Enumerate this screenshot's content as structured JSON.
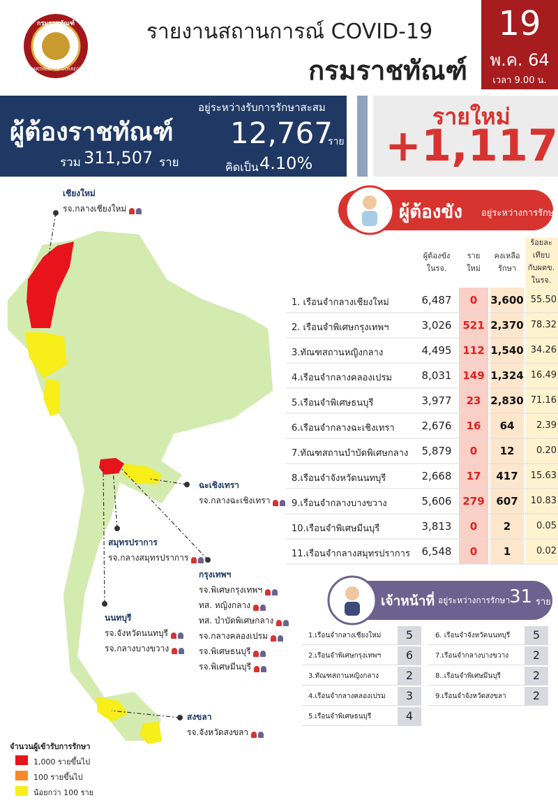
{
  "header": {
    "logo_text": "กรมราชทัณฑ์",
    "logo_subtext": "DEPARTMENT OF CORRECTIONS",
    "title": "รายงานสถานการณ์ COVID-19",
    "subtitle": "กรมราชทัณฑ์",
    "day": "19",
    "month": "พ.ค. 64",
    "time": "เวลา 9.00 น."
  },
  "summary": {
    "label": "ผู้ต้องราชทัณฑ์",
    "total_prefix": "รวม",
    "total": "311,507",
    "total_unit": "ราย",
    "treating_label": "อยู่ระหว่างรับการรักษาสะสม",
    "treating": "12,767",
    "treating_unit": "ราย",
    "percent_prefix": "คิดเป็น",
    "percent": "4.10%"
  },
  "new_cases": {
    "label": "รายใหม่",
    "value": "+1,117"
  },
  "inmates": {
    "title": "ผู้ต้องขัง",
    "subtitle": "อยู่ระหว่างการรักษา",
    "headers": [
      [
        "ผู้ต้องขัง",
        "ในรจ."
      ],
      [
        "ราย",
        "ใหม่"
      ],
      [
        "คงเหลือ",
        "รักษา"
      ],
      [
        "ร้อยละ",
        "เทียบ",
        "กับผตข.",
        "ในรจ."
      ]
    ],
    "rows": [
      [
        "1. เรือนจำกลางเชียงใหม่",
        "6,487",
        "0",
        "3,600",
        "55.50"
      ],
      [
        "2. เรือนจำพิเศษกรุงเทพฯ",
        "3,026",
        "521",
        "2,370",
        "78.32"
      ],
      [
        "3.ทัณฑสถานหญิงกลาง",
        "4,495",
        "112",
        "1,540",
        "34.26"
      ],
      [
        "4.เรือนจำกลางคลองเปรม",
        "8,031",
        "149",
        "1,324",
        "16.49"
      ],
      [
        "5.เรือนจำพิเศษธนบุรี",
        "3,977",
        "23",
        "2,830",
        "71.16"
      ],
      [
        "6.เรือนจำกลางฉะเชิงเทรา",
        "2,676",
        "16",
        "64",
        "2.39"
      ],
      [
        "7.ทัณฑสถานบำบัดพิเศษกลาง",
        "5,879",
        "0",
        "12",
        "0.20"
      ],
      [
        "8.เรือนจำจังหวัดนนทบุรี",
        "2,668",
        "17",
        "417",
        "15.63"
      ],
      [
        "9.เรือนจำกลางบางขวาง",
        "5,606",
        "279",
        "607",
        "10.83"
      ],
      [
        "10.เรือนจำพิเศษมีนบุรี",
        "3,813",
        "0",
        "2",
        "0.05"
      ],
      [
        "11.เรือนจำกลางสมุทรปราการ",
        "6,548",
        "0",
        "1",
        "0.02"
      ]
    ]
  },
  "staff": {
    "title": "เจ้าหน้าที่",
    "subtitle": "อยู่ระหว่างการรักษา",
    "count": "31",
    "unit": "ราย",
    "rows": [
      [
        "1.เรือนจำกลางเชียงใหม่",
        "5"
      ],
      [
        "2.เรือนจำพิเศษกรุงเทพฯ",
        "6"
      ],
      [
        "3.ทัณฑสถานหญิงกลาง",
        "2"
      ],
      [
        "4.เรือนจำกลางคลองเปรม",
        "3"
      ],
      [
        "5.เรือนจำพิเศษธนบุรี",
        "4"
      ],
      [
        "6. เรือนจำจังหวัดนนทบุรี",
        "5"
      ],
      [
        "7.เรือนจำกลางบางขวาง",
        "2"
      ],
      [
        "8..เรือนจำพิเศษมีนบุรี",
        "2"
      ],
      [
        "9.เรือนจำจังหวัดสงขลา",
        "2"
      ]
    ]
  },
  "map": {
    "regions": [
      {
        "name": "เชียงใหม่",
        "prisons": [
          "รจ.กลางเชียงใหม่"
        ]
      },
      {
        "name": "ฉะเชิงเทรา",
        "prisons": [
          "รจ.กลางฉะเชิงเทรา"
        ]
      },
      {
        "name": "สมุทรปราการ",
        "prisons": [
          "รจ.กลางสมุทรปราการ"
        ]
      },
      {
        "name": "กรุงเทพฯ",
        "prisons": [
          "รจ.พิเศษกรุงเทพฯ",
          "ทส. หญิงกลาง",
          "ทส. บำบัดพิเศษกลาง",
          "รจ.กลางคลองเปรม",
          "รจ.พิเศษธนบุรี",
          "รจ.พิเศษมีนบุรี"
        ]
      },
      {
        "name": "นนทบุรี",
        "prisons": [
          "รจ.จังหวัดนนทบุรี",
          "รจ.กลางบางขวาง"
        ]
      },
      {
        "name": "สงขลา",
        "prisons": [
          "รจ.จังหวัดสงขลา"
        ]
      }
    ],
    "legend_title": "จำนวนผู้เข้ารับการรักษา",
    "legend": [
      {
        "label": "1,000 รายขึ้นไป",
        "color": "#e8141b"
      },
      {
        "label": "100 รายขึ้นไป",
        "color": "#f58a2a"
      },
      {
        "label": "น้อยกว่า 100 ราย",
        "color": "#f7ee1a"
      }
    ]
  }
}
